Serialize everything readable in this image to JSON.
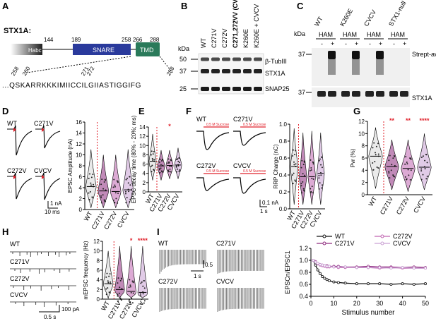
{
  "panels": {
    "A": "A",
    "B": "B",
    "C": "C",
    "D": "D",
    "E": "E",
    "F": "F",
    "G": "G",
    "H": "H",
    "I": "I"
  },
  "panelA": {
    "title": "STX1A:",
    "habc": "Habc",
    "snare": "SNARE",
    "tmd": "TMD",
    "dom_nums": [
      "144",
      "189",
      "258",
      "266",
      "288"
    ],
    "seq_nums": [
      "258",
      "260",
      "271",
      "272",
      "288"
    ],
    "sequence": "...QSKARRKKKIMIICCILGIIASTIGGIFG"
  },
  "panelB": {
    "kda": "kDa",
    "lanes": [
      "WT",
      "C271V",
      "C272V",
      "C271,272VV (CVCV)",
      "K260E",
      "K260E + CVCV"
    ],
    "markers": [
      "50",
      "37",
      "25"
    ],
    "bands": [
      "β-TubIII",
      "STX1A",
      "SNAP25"
    ]
  },
  "panelC": {
    "kda": "kDa",
    "groups": [
      "WT",
      "K260E",
      "CVCV",
      "STX1-null"
    ],
    "ham": "HAM",
    "signs": [
      "-",
      "+"
    ],
    "markers": [
      "37",
      "37"
    ],
    "bands": [
      "Strept-avidin",
      "STX1A"
    ]
  },
  "panelD": {
    "ylabel": "EPSC Amplitude (nA)",
    "groups": [
      "WT",
      "C271V",
      "C272V",
      "CVCV"
    ],
    "yticks": [
      "0",
      "2",
      "4",
      "6",
      "8",
      "10",
      "12",
      "14",
      "16"
    ],
    "scale_y": "1 nA",
    "scale_x": "10 ms",
    "violin_medians": [
      4.2,
      3.4,
      3.3,
      3.6
    ]
  },
  "panelE": {
    "ylabel": "EPSC decay time (80% - 20%; ms)",
    "groups": [
      "WT",
      "C271V",
      "C272V",
      "CVCV"
    ],
    "yticks": [
      "0",
      "2",
      "4",
      "6",
      "8",
      "10",
      "12",
      "14"
    ],
    "sig": "*",
    "violin_medians": [
      6.6,
      5.6,
      5.7,
      5.8
    ]
  },
  "panelF": {
    "ylabel": "RRP Charge (nC)",
    "groups": [
      "WT",
      "C271V",
      "C272V",
      "CVCV"
    ],
    "yticks": [
      "0.0",
      "0.2",
      "0.4",
      "0.6",
      "0.8",
      "1.0"
    ],
    "sucrose": "0.5 M Sucrose",
    "scale_y": "0.1 nA",
    "scale_x": "1 s",
    "violin_medians": [
      0.5,
      0.38,
      0.38,
      0.42
    ]
  },
  "panelG": {
    "ylabel": "Pvr (%)",
    "groups": [
      "WT",
      "C271V",
      "C272V",
      "CVCV"
    ],
    "yticks": [
      "0",
      "2",
      "4",
      "6",
      "8",
      "10",
      "12"
    ],
    "sig": [
      "**",
      "**",
      "****"
    ],
    "violin_medians": [
      6.3,
      4.6,
      4.3,
      4.5
    ]
  },
  "panelH": {
    "ylabel": "mEPSC frequency (Hz)",
    "groups": [
      "WT",
      "C271V",
      "C272V",
      "CVCV"
    ],
    "yticks": [
      "0",
      "2",
      "4",
      "6",
      "8",
      "10",
      "12",
      "15",
      "20"
    ],
    "sig": [
      "*",
      "****"
    ],
    "scale_y": "100 pA",
    "scale_x": "0.5 s",
    "violin_medians": [
      3.2,
      2.0,
      1.6,
      1.4
    ]
  },
  "panelI": {
    "traces": [
      "WT",
      "C271V",
      "C272V",
      "CVCV"
    ],
    "scale_y": "0.5",
    "scale_x": "1 s"
  },
  "chart_data": {
    "type": "line",
    "xlabel": "Stimulus number",
    "ylabel": "EPSCn/EPSC1",
    "xlim": [
      0,
      50
    ],
    "ylim": [
      0.4,
      1.2
    ],
    "xticks": [
      "0",
      "10",
      "20",
      "30",
      "40",
      "50"
    ],
    "yticks": [
      "0.4",
      "0.6",
      "0.8",
      "1.0",
      "1.2"
    ],
    "legend": "top",
    "series": [
      {
        "name": "WT",
        "color": "#111111",
        "x": [
          1,
          2,
          3,
          4,
          5,
          6,
          7,
          8,
          10,
          12,
          15,
          20,
          25,
          30,
          35,
          40,
          45,
          50
        ],
        "values": [
          1.0,
          0.92,
          0.84,
          0.78,
          0.73,
          0.7,
          0.68,
          0.66,
          0.64,
          0.63,
          0.62,
          0.61,
          0.61,
          0.61,
          0.6,
          0.61,
          0.6,
          0.61
        ]
      },
      {
        "name": "C271V",
        "color": "#8e2a7e",
        "x": [
          1,
          2,
          3,
          4,
          5,
          6,
          7,
          8,
          10,
          12,
          15,
          20,
          25,
          30,
          35,
          40,
          45,
          50
        ],
        "values": [
          1.0,
          0.98,
          0.95,
          0.93,
          0.92,
          0.91,
          0.91,
          0.9,
          0.9,
          0.9,
          0.89,
          0.89,
          0.9,
          0.89,
          0.89,
          0.88,
          0.89,
          0.88
        ]
      },
      {
        "name": "C272V",
        "color": "#c064b1",
        "x": [
          1,
          2,
          3,
          4,
          5,
          6,
          7,
          8,
          10,
          12,
          15,
          20,
          25,
          30,
          35,
          40,
          45,
          50
        ],
        "values": [
          1.0,
          0.97,
          0.94,
          0.92,
          0.91,
          0.9,
          0.89,
          0.89,
          0.89,
          0.88,
          0.88,
          0.88,
          0.88,
          0.87,
          0.88,
          0.87,
          0.87,
          0.87
        ]
      },
      {
        "name": "CVCV",
        "color": "#c9a0d3",
        "x": [
          1,
          2,
          3,
          4,
          5,
          6,
          7,
          8,
          10,
          12,
          15,
          20,
          25,
          30,
          35,
          40,
          45,
          50
        ],
        "values": [
          1.0,
          0.97,
          0.95,
          0.93,
          0.92,
          0.91,
          0.9,
          0.9,
          0.89,
          0.89,
          0.89,
          0.88,
          0.88,
          0.88,
          0.87,
          0.88,
          0.87,
          0.87
        ]
      }
    ]
  },
  "colors": {
    "wt": "#d9d9d9",
    "c271v": "#8e2a7e",
    "c272v": "#c064b1",
    "cvcv": "#c9a0d3",
    "snare": "#2a3a9c",
    "tmd": "#2a7a5a",
    "sig": "#e0202a"
  }
}
